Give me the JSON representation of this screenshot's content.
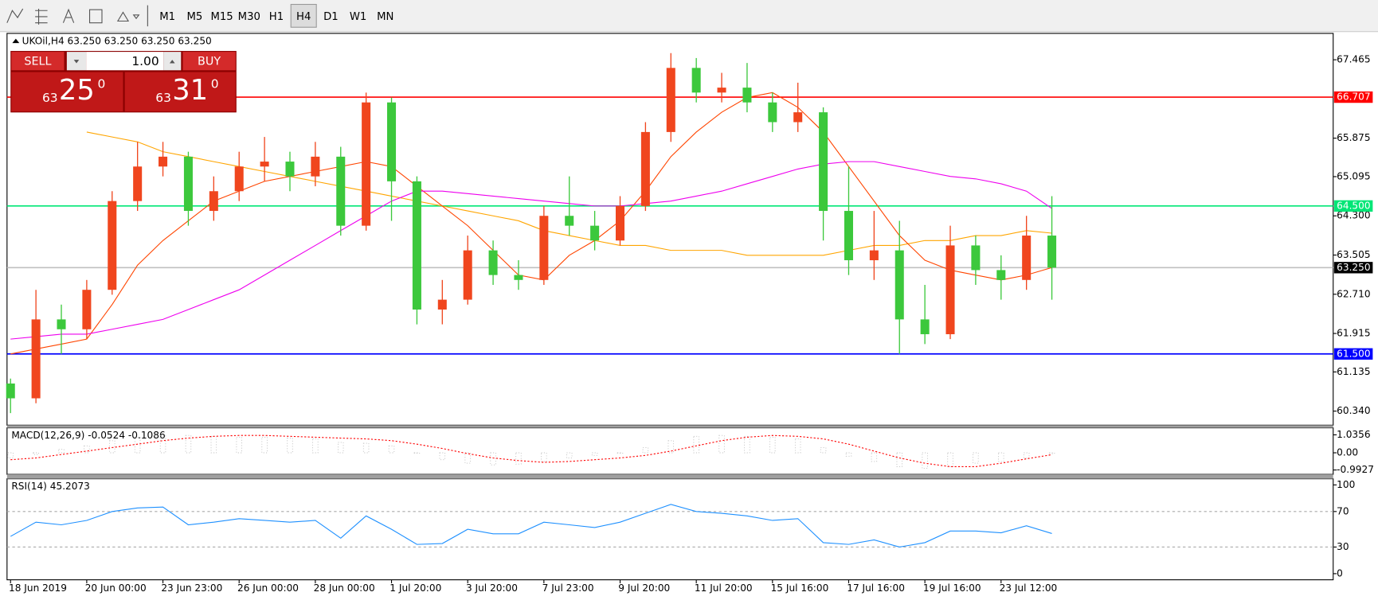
{
  "toolbar": {
    "timeframes": [
      "M1",
      "M5",
      "M15",
      "M30",
      "H1",
      "H4",
      "D1",
      "W1",
      "MN"
    ],
    "active": "H4"
  },
  "trade_panel": {
    "sell": "SELL",
    "buy": "BUY",
    "lot": "1.00",
    "bid": {
      "big": "63",
      "figure": "25",
      "point": "0"
    },
    "ask": {
      "big": "63",
      "figure": "31",
      "point": "0"
    }
  },
  "chart_data": [
    {
      "type": "candlestick",
      "title": "UKOil,H4 63.250 63.250 63.250 63.250",
      "categories": [
        "18 Jun 2019",
        null,
        null,
        "20 Jun 00:00",
        null,
        null,
        "23 Jun 23:00",
        null,
        null,
        "26 Jun 00:00",
        null,
        null,
        "28 Jun 00:00",
        null,
        null,
        "1 Jul 20:00",
        null,
        null,
        "3 Jul 20:00",
        null,
        null,
        "7 Jul 23:00",
        null,
        null,
        "9 Jul 20:00",
        null,
        null,
        "11 Jul 20:00",
        null,
        null,
        "15 Jul 16:00",
        null,
        null,
        "17 Jul 16:00",
        null,
        null,
        "19 Jul 16:00",
        null,
        null,
        "23 Jul 12:00",
        null,
        null
      ],
      "open": [
        60.9,
        60.6,
        62.2,
        62.0,
        62.8,
        64.6,
        65.3,
        65.5,
        64.4,
        64.8,
        65.3,
        65.4,
        65.1,
        65.5,
        64.1,
        66.6,
        65.0,
        62.4,
        62.6,
        63.6,
        63.1,
        63.0,
        64.3,
        64.1,
        63.8,
        64.5,
        66.0,
        67.3,
        66.8,
        66.9,
        66.6,
        66.2,
        66.4,
        64.4,
        63.4,
        63.6,
        62.2,
        61.9,
        63.7,
        63.2,
        63.0,
        63.9
      ],
      "high": [
        61.0,
        62.8,
        62.5,
        63.0,
        64.8,
        65.8,
        65.8,
        65.6,
        65.1,
        65.6,
        65.9,
        65.6,
        65.8,
        65.7,
        66.8,
        66.7,
        65.1,
        63.0,
        63.9,
        63.8,
        63.4,
        64.5,
        65.1,
        64.4,
        64.7,
        66.2,
        67.6,
        67.5,
        67.2,
        67.4,
        66.8,
        67.0,
        66.5,
        65.3,
        64.4,
        64.2,
        62.9,
        64.1,
        63.9,
        63.5,
        64.3,
        64.7
      ],
      "low": [
        60.3,
        60.5,
        61.5,
        61.8,
        62.7,
        64.4,
        65.1,
        64.1,
        64.2,
        64.6,
        65.0,
        64.8,
        64.9,
        63.9,
        64.0,
        64.2,
        62.1,
        62.1,
        62.5,
        62.9,
        62.8,
        62.9,
        63.9,
        63.6,
        63.7,
        64.4,
        65.8,
        66.6,
        66.6,
        66.4,
        66.0,
        66.0,
        63.8,
        63.1,
        63.0,
        61.5,
        61.7,
        61.8,
        62.9,
        62.6,
        62.8,
        62.6
      ],
      "close": [
        60.6,
        62.2,
        62.0,
        62.8,
        64.6,
        65.3,
        65.5,
        64.4,
        64.8,
        65.3,
        65.4,
        65.1,
        65.5,
        64.1,
        66.6,
        65.0,
        62.4,
        62.6,
        63.6,
        63.1,
        63.0,
        64.3,
        64.1,
        63.8,
        64.5,
        66.0,
        67.3,
        66.8,
        66.9,
        66.6,
        66.2,
        66.4,
        64.4,
        63.4,
        63.6,
        62.2,
        61.9,
        63.7,
        63.2,
        63.0,
        63.9,
        63.25
      ],
      "up_color": "#f0461e",
      "down_color": "#3cc83c",
      "lines": [
        {
          "color": "#ffa500",
          "values": [
            null,
            null,
            null,
            66.0,
            65.9,
            65.8,
            65.6,
            65.5,
            65.4,
            65.3,
            65.2,
            65.1,
            65.0,
            64.9,
            64.8,
            64.7,
            64.6,
            64.5,
            64.4,
            64.3,
            64.2,
            64.0,
            63.9,
            63.8,
            63.7,
            63.7,
            63.6,
            63.6,
            63.6,
            63.5,
            63.5,
            63.5,
            63.5,
            63.6,
            63.7,
            63.7,
            63.8,
            63.8,
            63.9,
            63.9,
            64.0,
            63.95
          ]
        },
        {
          "color": "#ff4500",
          "values": [
            61.5,
            61.6,
            61.7,
            61.8,
            62.5,
            63.3,
            63.8,
            64.2,
            64.6,
            64.8,
            65.0,
            65.1,
            65.2,
            65.3,
            65.4,
            65.3,
            64.9,
            64.5,
            64.1,
            63.6,
            63.1,
            63.0,
            63.5,
            63.8,
            64.2,
            64.8,
            65.5,
            66.0,
            66.4,
            66.7,
            66.8,
            66.5,
            66.0,
            65.3,
            64.6,
            63.9,
            63.4,
            63.2,
            63.1,
            63.0,
            63.1,
            63.25
          ]
        },
        {
          "color": "#ee00ee",
          "values": [
            61.8,
            61.85,
            61.9,
            61.9,
            62.0,
            62.1,
            62.2,
            62.4,
            62.6,
            62.8,
            63.1,
            63.4,
            63.7,
            64.0,
            64.3,
            64.6,
            64.8,
            64.8,
            64.75,
            64.7,
            64.65,
            64.6,
            64.55,
            64.5,
            64.5,
            64.55,
            64.6,
            64.7,
            64.8,
            64.95,
            65.1,
            65.25,
            65.35,
            65.4,
            65.4,
            65.3,
            65.2,
            65.1,
            65.05,
            64.95,
            64.8,
            64.45
          ]
        }
      ],
      "levels": [
        {
          "value": 66.707,
          "color": "#ff0000",
          "box_color": "#ff0000"
        },
        {
          "value": 64.5,
          "label": "64.500",
          "color": "#00e676",
          "box_color": "#00e676"
        },
        {
          "value": 63.25,
          "label": "63.250",
          "color": "#c0c0c0",
          "box_color": "#000000"
        },
        {
          "value": 61.5,
          "label": "61.500",
          "color": "#0000ff",
          "box_color": "#0000ff"
        }
      ],
      "ylim": [
        60.055,
        68.0
      ],
      "yticks": [
        67.465,
        65.875,
        65.095,
        {
          "value": 64.3,
          "label": "64.300"
        },
        {
          "value": 63.505,
          "label": "63.505"
        },
        {
          "value": 62.71,
          "label": "62.710"
        },
        61.915,
        61.135,
        {
          "value": 60.34,
          "label": "60.340"
        }
      ]
    },
    {
      "type": "macd",
      "title": "MACD(12,26,9) -0.0524 -0.1086",
      "values": [
        -0.3,
        -0.1,
        0.2,
        0.4,
        0.7,
        0.9,
        1.0,
        1.0,
        0.95,
        0.9,
        0.9,
        0.85,
        0.8,
        0.6,
        0.55,
        0.4,
        0.0,
        -0.4,
        -0.6,
        -0.7,
        -0.65,
        -0.5,
        -0.3,
        -0.15,
        0.0,
        0.3,
        0.7,
        0.95,
        1.0,
        0.95,
        0.9,
        0.8,
        0.3,
        -0.2,
        -0.5,
        -0.8,
        -0.9,
        -0.8,
        -0.6,
        -0.5,
        -0.3,
        -0.0524
      ],
      "signal": [
        -0.4,
        -0.3,
        -0.1,
        0.1,
        0.3,
        0.5,
        0.7,
        0.85,
        0.95,
        1.0,
        1.0,
        0.95,
        0.9,
        0.85,
        0.8,
        0.7,
        0.5,
        0.25,
        -0.05,
        -0.3,
        -0.45,
        -0.55,
        -0.5,
        -0.4,
        -0.3,
        -0.15,
        0.1,
        0.4,
        0.7,
        0.9,
        1.0,
        0.95,
        0.8,
        0.5,
        0.1,
        -0.3,
        -0.6,
        -0.8,
        -0.8,
        -0.6,
        -0.35,
        -0.1086
      ],
      "color": "#c0c0c0",
      "signal_color": "#ff0000",
      "ylim": [
        -1.246,
        1.441
      ],
      "yticks": [
        1.0356,
        {
          "value": 0,
          "label": "0.00"
        },
        -0.9927
      ]
    },
    {
      "type": "rsi",
      "title": "RSI(14) 45.2073",
      "values": [
        42,
        58,
        55,
        60,
        70,
        74,
        75,
        55,
        58,
        62,
        60,
        58,
        60,
        40,
        65,
        50,
        33,
        34,
        50,
        45,
        45,
        58,
        55,
        52,
        58,
        68,
        78,
        70,
        68,
        65,
        60,
        62,
        35,
        33,
        38,
        30,
        35,
        48,
        48,
        46,
        54,
        45.2073
      ],
      "color": "#1e90ff",
      "levels": [
        70,
        30
      ],
      "ylim": [
        -6.9,
        106.9
      ],
      "yticks": [
        100,
        70,
        30,
        0
      ]
    }
  ]
}
